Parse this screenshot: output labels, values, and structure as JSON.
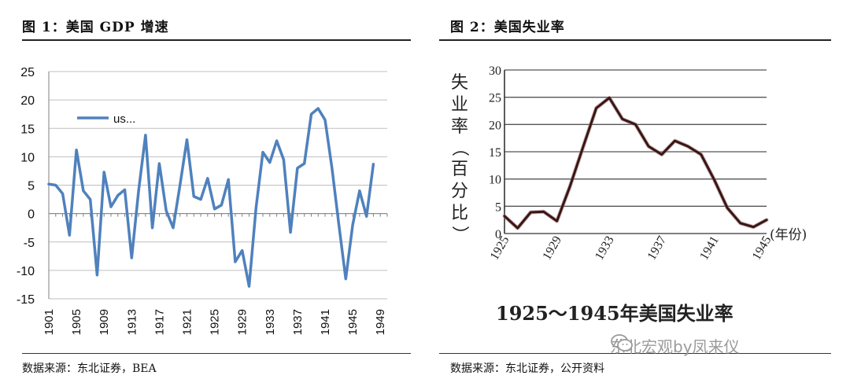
{
  "panel_left": {
    "figure_title": "图 1：美国 GDP 增速",
    "source": "数据来源：东北证券，BEA"
  },
  "panel_right": {
    "figure_title": "图 2：美国失业率",
    "source": "数据来源：东北证券，公开资料"
  },
  "watermark": {
    "text": "东北宏观by凤来仪",
    "icon": "wechat-icon"
  },
  "chart_data": [
    {
      "type": "line",
      "title": "",
      "xlabel": "",
      "ylabel": "",
      "ylim": [
        -15,
        25
      ],
      "xlim": [
        1901,
        1950
      ],
      "yticks": [
        "25",
        "20",
        "15",
        "10",
        "5",
        "0",
        "-5",
        "-10",
        "-15"
      ],
      "xticks": [
        "1901",
        "1905",
        "1909",
        "1913",
        "1917",
        "1921",
        "1925",
        "1929",
        "1933",
        "1937",
        "1941",
        "1945",
        "1949"
      ],
      "grid": true,
      "legend": {
        "placement": "top-left",
        "entries": [
          "us..."
        ]
      },
      "colors": {
        "line": "#4f81bd",
        "grid": "#bfbfbf"
      },
      "series": [
        {
          "name": "us...",
          "x": [
            1901,
            1902,
            1903,
            1904,
            1905,
            1906,
            1907,
            1908,
            1909,
            1910,
            1911,
            1912,
            1913,
            1914,
            1915,
            1916,
            1917,
            1918,
            1919,
            1920,
            1921,
            1922,
            1923,
            1924,
            1925,
            1926,
            1927,
            1928,
            1929,
            1930,
            1931,
            1932,
            1933,
            1934,
            1935,
            1936,
            1937,
            1938,
            1939,
            1940,
            1941,
            1942,
            1943,
            1944,
            1945,
            1946,
            1947,
            1948,
            1949,
            1950
          ],
          "values": [
            5.2,
            5.0,
            3.5,
            -3.8,
            11.2,
            4.0,
            2.5,
            -10.8,
            7.3,
            1.2,
            3.2,
            4.2,
            -7.8,
            4.0,
            13.8,
            -2.5,
            8.8,
            0.5,
            -2.5,
            5.0,
            13.0,
            3.0,
            2.5,
            6.2,
            0.8,
            1.5,
            6.0,
            -8.5,
            -6.5,
            -12.8,
            1.0,
            10.8,
            9.0,
            12.8,
            9.5,
            -3.3,
            8.0,
            8.8,
            17.5,
            18.5,
            16.5,
            8.0,
            -2.0,
            -11.5,
            -2.0,
            4.0,
            -0.5,
            8.7,
            null,
            null
          ]
        }
      ]
    },
    {
      "type": "line",
      "title": "1925～1945年美国失业率",
      "xlabel": "(年份)",
      "ylabel": "失业率（百分比）",
      "ylim": [
        0,
        30
      ],
      "xlim": [
        1925,
        1945
      ],
      "yticks": [
        "30",
        "25",
        "20",
        "15",
        "10",
        "5",
        "0"
      ],
      "xticks": [
        "1925",
        "1929",
        "1933",
        "1937",
        "1941",
        "1945"
      ],
      "grid": true,
      "colors": {
        "line": "#3b1414",
        "grid": "#555555"
      },
      "series": [
        {
          "x": [
            1925,
            1926,
            1927,
            1928,
            1929,
            1930,
            1931,
            1932,
            1933,
            1934,
            1935,
            1936,
            1937,
            1938,
            1939,
            1940,
            1941,
            1942,
            1943,
            1944,
            1945
          ],
          "values": [
            3.2,
            1.0,
            3.9,
            4.0,
            2.3,
            8.7,
            15.9,
            23.0,
            24.9,
            21.0,
            20.0,
            16.0,
            14.5,
            17.0,
            16.0,
            14.5,
            9.9,
            4.7,
            1.9,
            1.2,
            2.5
          ]
        }
      ]
    }
  ]
}
